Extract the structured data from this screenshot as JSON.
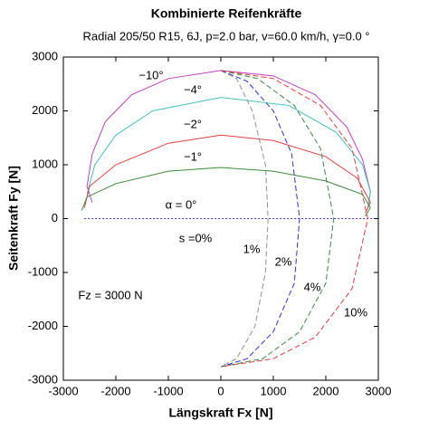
{
  "chart_data": {
    "type": "line",
    "title": "Kombinierte Reifenkräfte",
    "subtitle": "Radial 205/50 R15, 6J, p=2.0 bar, v=60.0 km/h, γ=0.0 °",
    "x_label": "Längskraft Fx [N]",
    "y_label": "Seitenkraft Fy [N]",
    "xlim": [
      -3000,
      3000
    ],
    "ylim": [
      -3000,
      3000
    ],
    "xticks": [
      -3000,
      -2000,
      -1000,
      0,
      1000,
      2000,
      3000
    ],
    "yticks": [
      -3000,
      -2000,
      -1000,
      0,
      1000,
      2000,
      3000
    ],
    "annotations": [
      "s =0%",
      "Fz = 3000 N"
    ],
    "series": [
      {
        "name": "−10°",
        "color": "#c040c0",
        "dash": false,
        "x": [
          -2450,
          -2550,
          -2450,
          -2200,
          -1700,
          -1000,
          0,
          1000,
          1800,
          2400,
          2700,
          2850,
          2800
        ],
        "values": [
          300,
          600,
          1200,
          1800,
          2300,
          2600,
          2750,
          2650,
          2300,
          1700,
          1100,
          500,
          200
        ]
      },
      {
        "name": "−4°",
        "color": "#40c0c0",
        "dash": false,
        "x": [
          -2550,
          -2400,
          -2000,
          -1300,
          0,
          1300,
          2200,
          2700,
          2850,
          2800
        ],
        "values": [
          450,
          1000,
          1550,
          2000,
          2250,
          2100,
          1600,
          1000,
          500,
          200
        ]
      },
      {
        "name": "−2°",
        "color": "#e04040",
        "dash": false,
        "x": [
          -2600,
          -2500,
          -2000,
          -1000,
          0,
          1000,
          2000,
          2600,
          2850,
          2750
        ],
        "values": [
          200,
          600,
          1000,
          1400,
          1550,
          1450,
          1150,
          750,
          300,
          100
        ]
      },
      {
        "name": "−1°",
        "color": "#3a8a3a",
        "dash": false,
        "x": [
          -2650,
          -2550,
          -2000,
          -1000,
          0,
          1000,
          2000,
          2700,
          2850,
          2750
        ],
        "values": [
          150,
          400,
          650,
          880,
          950,
          880,
          700,
          450,
          200,
          50
        ]
      },
      {
        "name": "α = 0°",
        "color": "#3030e0",
        "dash": true,
        "x": [
          -2600,
          0,
          2900
        ],
        "values": [
          0,
          0,
          0
        ]
      },
      {
        "name": "1%",
        "color": "#909090",
        "dash": true,
        "x": [
          0,
          300,
          600,
          850,
          900,
          850,
          650,
          300,
          0
        ],
        "values": [
          2750,
          2600,
          2000,
          1000,
          0,
          -1000,
          -2000,
          -2600,
          -2750
        ]
      },
      {
        "name": "2%",
        "color": "#3030e0",
        "dash": true,
        "x": [
          0,
          500,
          1000,
          1350,
          1500,
          1400,
          1000,
          500,
          0
        ],
        "values": [
          2750,
          2550,
          2000,
          1200,
          0,
          -1200,
          -2100,
          -2600,
          -2750
        ]
      },
      {
        "name": "4%",
        "color": "#3a8a3a",
        "dash": true,
        "x": [
          0,
          700,
          1400,
          1900,
          2150,
          2000,
          1500,
          800,
          0
        ],
        "values": [
          2750,
          2600,
          2100,
          1300,
          0,
          -1200,
          -2100,
          -2600,
          -2750
        ]
      },
      {
        "name": "10%",
        "color": "#e04040",
        "dash": true,
        "x": [
          0,
          1000,
          1900,
          2500,
          2800,
          2500,
          1800,
          1000,
          0
        ],
        "values": [
          2750,
          2600,
          2100,
          1300,
          0,
          -1300,
          -2200,
          -2600,
          -2750
        ]
      }
    ]
  }
}
